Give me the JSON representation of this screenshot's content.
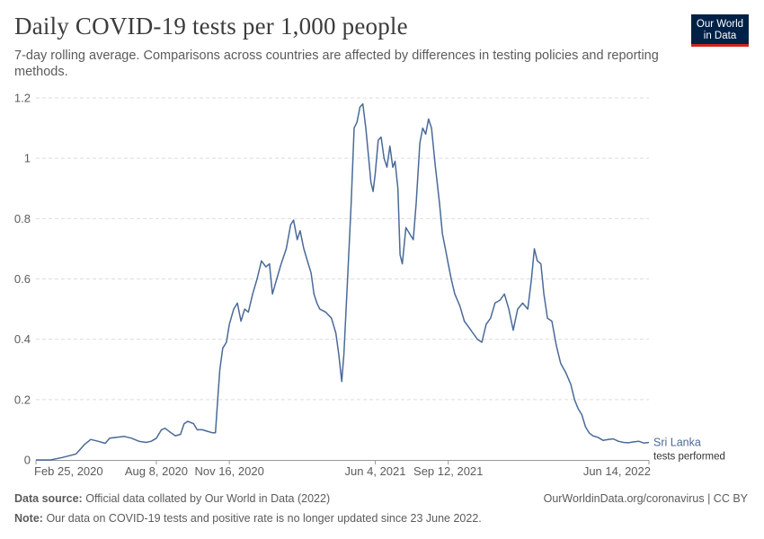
{
  "header": {
    "title": "Daily COVID-19 tests per 1,000 people",
    "subtitle": "7-day rolling average. Comparisons across countries are affected by differences in testing policies and reporting methods."
  },
  "logo": {
    "line1": "Our World",
    "line2": "in Data"
  },
  "footer": {
    "source_label": "Data source:",
    "source_text": "Official data collated by Our World in Data (2022)",
    "url_text": "OurWorldinData.org/coronavirus | CC BY",
    "note_label": "Note:",
    "note_text": "Our data on COVID-19 tests and positive rate is no longer updated since 23 June 2022."
  },
  "colors": {
    "series": "#4a6a97",
    "grid": "#dddddd",
    "axis": "#999999",
    "text": "#5b5b5b"
  },
  "chart_data": {
    "type": "line",
    "title": "Daily COVID-19 tests per 1,000 people",
    "ylim": [
      0,
      1.2
    ],
    "yticks": [
      0,
      0.2,
      0.4,
      0.6,
      0.8,
      1,
      1.2
    ],
    "ytick_labels": [
      "0",
      "0.2",
      "0.4",
      "0.6",
      "0.8",
      "1",
      "1.2"
    ],
    "xlim": [
      "2020-02-25",
      "2022-06-14"
    ],
    "xticks": [
      "2020-02-25",
      "2020-08-08",
      "2020-11-16",
      "2021-06-04",
      "2021-09-12",
      "2022-06-14"
    ],
    "xtick_labels": [
      "Feb 25, 2020",
      "Aug 8, 2020",
      "Nov 16, 2020",
      "Jun 4, 2021",
      "Sep 12, 2021",
      "Jun 14, 2022"
    ],
    "grid": "horizontal dashed",
    "series": [
      {
        "name": "Sri Lanka",
        "label_secondary": "tests performed",
        "color": "#4a6a97",
        "points": [
          [
            "2020-02-25",
            0.0
          ],
          [
            "2020-03-16",
            0.0
          ],
          [
            "2020-04-01",
            0.008
          ],
          [
            "2020-04-20",
            0.02
          ],
          [
            "2020-05-01",
            0.05
          ],
          [
            "2020-05-10",
            0.068
          ],
          [
            "2020-05-20",
            0.062
          ],
          [
            "2020-05-30",
            0.055
          ],
          [
            "2020-06-05",
            0.072
          ],
          [
            "2020-06-15",
            0.075
          ],
          [
            "2020-06-25",
            0.078
          ],
          [
            "2020-07-05",
            0.072
          ],
          [
            "2020-07-15",
            0.062
          ],
          [
            "2020-07-25",
            0.058
          ],
          [
            "2020-08-01",
            0.062
          ],
          [
            "2020-08-08",
            0.072
          ],
          [
            "2020-08-15",
            0.1
          ],
          [
            "2020-08-20",
            0.105
          ],
          [
            "2020-08-28",
            0.09
          ],
          [
            "2020-09-03",
            0.08
          ],
          [
            "2020-09-10",
            0.085
          ],
          [
            "2020-09-15",
            0.12
          ],
          [
            "2020-09-20",
            0.128
          ],
          [
            "2020-09-28",
            0.12
          ],
          [
            "2020-10-03",
            0.1
          ],
          [
            "2020-10-10",
            0.1
          ],
          [
            "2020-10-17",
            0.095
          ],
          [
            "2020-10-24",
            0.09
          ],
          [
            "2020-10-28",
            0.09
          ],
          [
            "2020-10-31",
            0.2
          ],
          [
            "2020-11-03",
            0.3
          ],
          [
            "2020-11-07",
            0.37
          ],
          [
            "2020-11-12",
            0.39
          ],
          [
            "2020-11-16",
            0.45
          ],
          [
            "2020-11-22",
            0.5
          ],
          [
            "2020-11-27",
            0.52
          ],
          [
            "2020-12-02",
            0.46
          ],
          [
            "2020-12-07",
            0.5
          ],
          [
            "2020-12-12",
            0.49
          ],
          [
            "2020-12-18",
            0.55
          ],
          [
            "2020-12-24",
            0.6
          ],
          [
            "2020-12-30",
            0.66
          ],
          [
            "2021-01-05",
            0.64
          ],
          [
            "2021-01-10",
            0.65
          ],
          [
            "2021-01-14",
            0.55
          ],
          [
            "2021-01-20",
            0.6
          ],
          [
            "2021-01-26",
            0.65
          ],
          [
            "2021-02-02",
            0.7
          ],
          [
            "2021-02-08",
            0.78
          ],
          [
            "2021-02-12",
            0.795
          ],
          [
            "2021-02-17",
            0.73
          ],
          [
            "2021-02-21",
            0.76
          ],
          [
            "2021-02-26",
            0.7
          ],
          [
            "2021-03-03",
            0.66
          ],
          [
            "2021-03-08",
            0.62
          ],
          [
            "2021-03-12",
            0.55
          ],
          [
            "2021-03-16",
            0.52
          ],
          [
            "2021-03-20",
            0.5
          ],
          [
            "2021-03-28",
            0.49
          ],
          [
            "2021-04-05",
            0.47
          ],
          [
            "2021-04-11",
            0.42
          ],
          [
            "2021-04-15",
            0.35
          ],
          [
            "2021-04-19",
            0.26
          ],
          [
            "2021-04-22",
            0.35
          ],
          [
            "2021-04-27",
            0.6
          ],
          [
            "2021-05-02",
            0.85
          ],
          [
            "2021-05-06",
            1.1
          ],
          [
            "2021-05-10",
            1.12
          ],
          [
            "2021-05-14",
            1.17
          ],
          [
            "2021-05-18",
            1.18
          ],
          [
            "2021-05-22",
            1.1
          ],
          [
            "2021-05-26",
            1.0
          ],
          [
            "2021-05-29",
            0.92
          ],
          [
            "2021-06-01",
            0.89
          ],
          [
            "2021-06-04",
            0.95
          ],
          [
            "2021-06-08",
            1.06
          ],
          [
            "2021-06-12",
            1.07
          ],
          [
            "2021-06-16",
            1.0
          ],
          [
            "2021-06-20",
            0.97
          ],
          [
            "2021-06-24",
            1.04
          ],
          [
            "2021-06-28",
            0.97
          ],
          [
            "2021-07-01",
            0.99
          ],
          [
            "2021-07-05",
            0.9
          ],
          [
            "2021-07-08",
            0.68
          ],
          [
            "2021-07-11",
            0.65
          ],
          [
            "2021-07-16",
            0.77
          ],
          [
            "2021-07-21",
            0.75
          ],
          [
            "2021-07-26",
            0.73
          ],
          [
            "2021-07-30",
            0.85
          ],
          [
            "2021-08-04",
            1.05
          ],
          [
            "2021-08-08",
            1.1
          ],
          [
            "2021-08-12",
            1.08
          ],
          [
            "2021-08-16",
            1.13
          ],
          [
            "2021-08-20",
            1.1
          ],
          [
            "2021-08-25",
            0.98
          ],
          [
            "2021-08-31",
            0.85
          ],
          [
            "2021-09-04",
            0.75
          ],
          [
            "2021-09-08",
            0.7
          ],
          [
            "2021-09-12",
            0.65
          ],
          [
            "2021-09-16",
            0.6
          ],
          [
            "2021-09-21",
            0.55
          ],
          [
            "2021-09-28",
            0.51
          ],
          [
            "2021-10-04",
            0.46
          ],
          [
            "2021-10-10",
            0.44
          ],
          [
            "2021-10-16",
            0.42
          ],
          [
            "2021-10-22",
            0.4
          ],
          [
            "2021-10-28",
            0.39
          ],
          [
            "2021-11-03",
            0.45
          ],
          [
            "2021-11-09",
            0.47
          ],
          [
            "2021-11-15",
            0.52
          ],
          [
            "2021-11-22",
            0.53
          ],
          [
            "2021-11-28",
            0.55
          ],
          [
            "2021-12-04",
            0.5
          ],
          [
            "2021-12-10",
            0.43
          ],
          [
            "2021-12-16",
            0.5
          ],
          [
            "2021-12-23",
            0.52
          ],
          [
            "2021-12-30",
            0.5
          ],
          [
            "2022-01-04",
            0.6
          ],
          [
            "2022-01-08",
            0.7
          ],
          [
            "2022-01-12",
            0.66
          ],
          [
            "2022-01-17",
            0.65
          ],
          [
            "2022-01-21",
            0.55
          ],
          [
            "2022-01-26",
            0.47
          ],
          [
            "2022-02-01",
            0.46
          ],
          [
            "2022-02-07",
            0.38
          ],
          [
            "2022-02-13",
            0.32
          ],
          [
            "2022-02-20",
            0.29
          ],
          [
            "2022-02-27",
            0.25
          ],
          [
            "2022-03-04",
            0.2
          ],
          [
            "2022-03-09",
            0.17
          ],
          [
            "2022-03-14",
            0.15
          ],
          [
            "2022-03-19",
            0.11
          ],
          [
            "2022-03-24",
            0.09
          ],
          [
            "2022-03-29",
            0.08
          ],
          [
            "2022-04-05",
            0.075
          ],
          [
            "2022-04-12",
            0.065
          ],
          [
            "2022-04-19",
            0.068
          ],
          [
            "2022-04-26",
            0.07
          ],
          [
            "2022-05-03",
            0.062
          ],
          [
            "2022-05-10",
            0.058
          ],
          [
            "2022-05-17",
            0.057
          ],
          [
            "2022-05-24",
            0.06
          ],
          [
            "2022-05-31",
            0.062
          ],
          [
            "2022-06-07",
            0.056
          ],
          [
            "2022-06-14",
            0.058
          ]
        ]
      }
    ]
  }
}
